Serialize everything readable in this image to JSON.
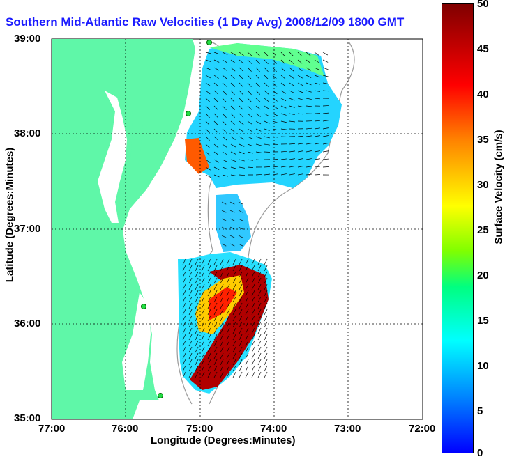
{
  "title": "Southern Mid-Atlantic Raw Velocities (1 Day Avg) 2008/12/09 1800 GMT",
  "axes": {
    "xlabel": "Longitude (Degrees:Minutes)",
    "ylabel": "Latitude (Degrees:Minutes)",
    "xticks": [
      "77:00",
      "76:00",
      "75:00",
      "74:00",
      "73:00",
      "72:00"
    ],
    "yticks": [
      "39:00",
      "38:00",
      "37:00",
      "36:00",
      "35:00"
    ]
  },
  "colorbar": {
    "label": "Surface Velocity (cm/s)",
    "ticks": [
      "50",
      "45",
      "40",
      "35",
      "30",
      "25",
      "20",
      "15",
      "10",
      "5",
      "0"
    ]
  },
  "colors": {
    "land": "#5ff7a8",
    "title": "#1a1aff"
  }
}
